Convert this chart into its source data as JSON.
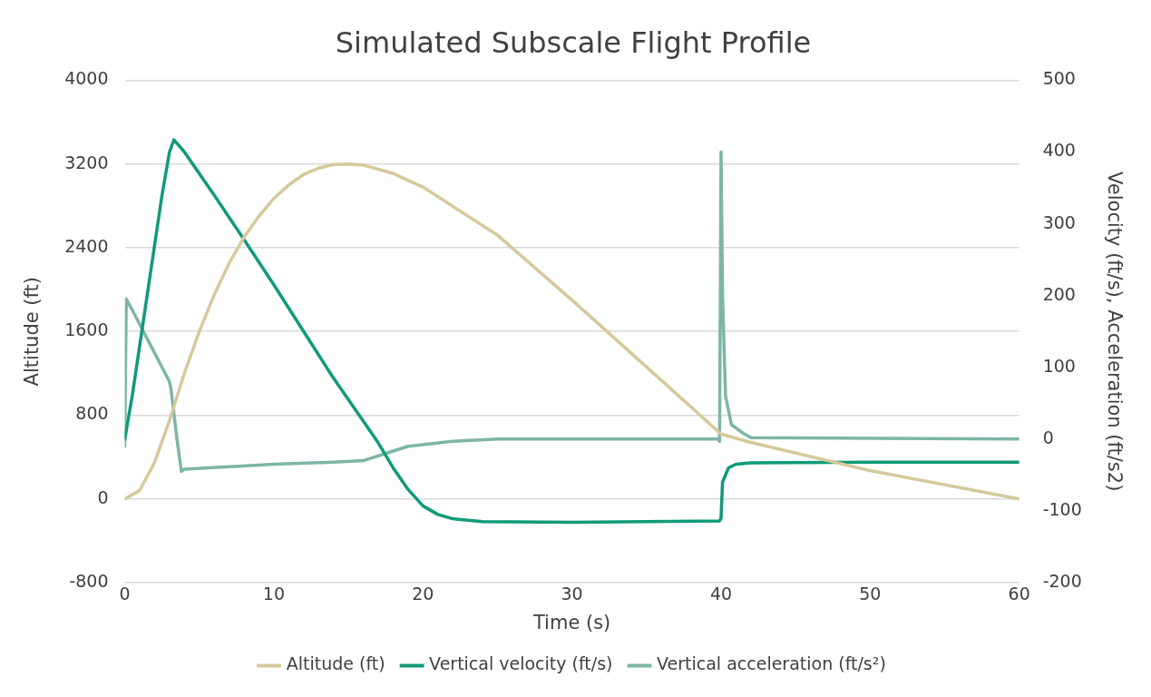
{
  "chart_data": {
    "type": "line",
    "title": "Simulated Subscale Flight Profile",
    "xlabel": "Time (s)",
    "ylabel": "Altitude (ft)",
    "y2label": "Velocity (ft/s), Acceleration (ft/s2)",
    "xlim": [
      0,
      60
    ],
    "xticks": [
      0,
      10,
      20,
      30,
      40,
      50,
      60
    ],
    "ylim": [
      -800,
      4000
    ],
    "yticks": [
      -800,
      0,
      800,
      1600,
      2400,
      3200,
      4000
    ],
    "y2lim": [
      -200,
      500
    ],
    "y2ticks": [
      -200,
      -100,
      0,
      100,
      200,
      300,
      400,
      500
    ],
    "grid": "y",
    "legend": "bottom",
    "marker": "none",
    "line_style": "solid",
    "series": [
      {
        "name": "Altitude (ft)",
        "color": "#d5c99b",
        "x": [
          0,
          1,
          2,
          3,
          4,
          5,
          6,
          7,
          8,
          9,
          10,
          11,
          12,
          13,
          14,
          15,
          16,
          18,
          20,
          25,
          30,
          35,
          40,
          42,
          50,
          60
        ],
        "values": [
          0,
          80,
          350,
          750,
          1200,
          1600,
          1950,
          2250,
          2500,
          2700,
          2870,
          3000,
          3100,
          3160,
          3195,
          3200,
          3190,
          3110,
          2980,
          2520,
          1900,
          1260,
          620,
          540,
          270,
          0
        ]
      },
      {
        "name": "Vertical velocity (ft/s)",
        "color": "#0f9a79",
        "axis": "y2",
        "x": [
          0,
          0.5,
          1,
          1.5,
          2,
          2.5,
          3,
          3.3,
          4,
          5,
          6,
          8,
          10,
          12,
          14,
          15,
          16,
          17,
          18,
          19,
          20,
          21,
          22,
          24,
          30,
          35,
          39.9,
          40,
          40.1,
          40.5,
          41,
          42,
          50,
          60
        ],
        "values": [
          0,
          60,
          130,
          200,
          270,
          340,
          400,
          417,
          400,
          370,
          340,
          278,
          215,
          150,
          85,
          55,
          25,
          -5,
          -40,
          -70,
          -93,
          -105,
          -111,
          -115,
          -116,
          -115,
          -114,
          -110,
          -60,
          -40,
          -35,
          -33,
          -32,
          -32
        ]
      },
      {
        "name": "Vertical acceleration (ft/s²)",
        "color": "#7db5a6",
        "axis": "y2",
        "x": [
          0,
          0.1,
          0.5,
          1,
          2,
          3,
          3.1,
          3.5,
          3.8,
          4,
          10,
          14,
          16,
          19,
          22,
          25,
          39.8,
          39.9,
          40,
          40.1,
          40.3,
          40.7,
          41.5,
          42,
          60
        ],
        "values": [
          -10,
          195,
          180,
          160,
          120,
          80,
          70,
          0,
          -45,
          -42,
          -35,
          -32,
          -30,
          -10,
          -3,
          0,
          0,
          -3,
          400,
          200,
          60,
          20,
          8,
          2,
          0
        ]
      }
    ]
  }
}
